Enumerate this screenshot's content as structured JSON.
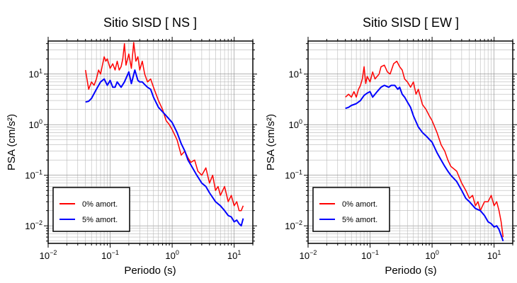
{
  "chart_data": [
    {
      "type": "line",
      "title": "Sitio SISD [ NS ]",
      "xlabel": "Periodo (s)",
      "ylabel": "PSA (cm/s²)",
      "xscale": "log",
      "yscale": "log",
      "xlim": [
        0.01,
        20
      ],
      "ylim": [
        0.0045,
        45
      ],
      "x_ticks": [
        {
          "base": "10",
          "exp": "−2"
        },
        {
          "base": "10",
          "exp": "−1"
        },
        {
          "base": "10",
          "exp": "0"
        },
        {
          "base": "10",
          "exp": "1"
        }
      ],
      "y_ticks": [
        {
          "base": "10",
          "exp": "−2"
        },
        {
          "base": "10",
          "exp": "−1"
        },
        {
          "base": "10",
          "exp": "0"
        },
        {
          "base": "10",
          "exp": "1"
        }
      ],
      "grid": true,
      "legend_position": "bottom-left",
      "series": [
        {
          "name": "0% amort.",
          "color": "#ff0000",
          "x": [
            0.04,
            0.045,
            0.05,
            0.055,
            0.06,
            0.065,
            0.07,
            0.075,
            0.08,
            0.085,
            0.09,
            0.1,
            0.11,
            0.12,
            0.13,
            0.14,
            0.15,
            0.16,
            0.17,
            0.18,
            0.2,
            0.22,
            0.24,
            0.26,
            0.28,
            0.3,
            0.33,
            0.36,
            0.4,
            0.45,
            0.5,
            0.55,
            0.6,
            0.7,
            0.8,
            0.9,
            1.0,
            1.2,
            1.4,
            1.6,
            1.8,
            2.0,
            2.3,
            2.6,
            3.0,
            3.5,
            4.0,
            4.5,
            5.0,
            5.5,
            6.0,
            7.0,
            8.0,
            9.0,
            10,
            11,
            12,
            13,
            14
          ],
          "values": [
            12,
            5,
            7,
            6,
            8,
            12,
            10,
            15,
            22,
            18,
            20,
            13,
            16,
            12,
            18,
            12,
            14,
            20,
            40,
            15,
            25,
            13,
            42,
            18,
            22,
            12,
            18,
            10,
            7,
            8,
            5.5,
            4,
            3,
            2,
            1.2,
            1,
            0.8,
            0.5,
            0.25,
            0.3,
            0.22,
            0.18,
            0.2,
            0.12,
            0.1,
            0.14,
            0.07,
            0.1,
            0.05,
            0.06,
            0.04,
            0.06,
            0.03,
            0.04,
            0.025,
            0.03,
            0.02,
            0.02,
            0.025
          ]
        },
        {
          "name": "5% amort.",
          "color": "#0000ff",
          "x": [
            0.04,
            0.045,
            0.05,
            0.06,
            0.07,
            0.08,
            0.09,
            0.1,
            0.11,
            0.12,
            0.13,
            0.15,
            0.17,
            0.2,
            0.22,
            0.25,
            0.28,
            0.3,
            0.33,
            0.36,
            0.4,
            0.45,
            0.5,
            0.6,
            0.7,
            0.8,
            1.0,
            1.2,
            1.4,
            1.6,
            1.8,
            2.0,
            2.5,
            3.0,
            3.5,
            4.0,
            5.0,
            6.0,
            7.0,
            8.0,
            9.0,
            10,
            11,
            12,
            13,
            14
          ],
          "values": [
            2.8,
            2.9,
            3.3,
            5,
            7,
            8,
            6,
            7.5,
            5.5,
            5.5,
            7,
            5.5,
            7,
            11,
            6.5,
            12,
            7.5,
            7,
            7,
            6.2,
            5.5,
            5,
            3.5,
            2.2,
            1.8,
            1.5,
            1.1,
            0.7,
            0.42,
            0.3,
            0.2,
            0.16,
            0.1,
            0.07,
            0.06,
            0.045,
            0.03,
            0.025,
            0.02,
            0.016,
            0.015,
            0.012,
            0.013,
            0.011,
            0.01,
            0.014
          ]
        }
      ]
    },
    {
      "type": "line",
      "title": "Sitio SISD [ EW ]",
      "xlabel": "Periodo (s)",
      "ylabel": "PSA (cm/s²)",
      "xscale": "log",
      "yscale": "log",
      "xlim": [
        0.01,
        20
      ],
      "ylim": [
        0.0045,
        45
      ],
      "x_ticks": [
        {
          "base": "10",
          "exp": "−2"
        },
        {
          "base": "10",
          "exp": "−1"
        },
        {
          "base": "10",
          "exp": "0"
        },
        {
          "base": "10",
          "exp": "1"
        }
      ],
      "y_ticks": [
        {
          "base": "10",
          "exp": "−2"
        },
        {
          "base": "10",
          "exp": "−1"
        },
        {
          "base": "10",
          "exp": "0"
        },
        {
          "base": "10",
          "exp": "1"
        }
      ],
      "grid": true,
      "legend_position": "bottom-left",
      "series": [
        {
          "name": "0% amort.",
          "color": "#ff0000",
          "x": [
            0.04,
            0.045,
            0.05,
            0.055,
            0.06,
            0.065,
            0.07,
            0.075,
            0.08,
            0.085,
            0.09,
            0.1,
            0.11,
            0.12,
            0.13,
            0.14,
            0.15,
            0.17,
            0.19,
            0.21,
            0.24,
            0.27,
            0.3,
            0.33,
            0.36,
            0.4,
            0.45,
            0.5,
            0.55,
            0.6,
            0.7,
            0.8,
            0.9,
            1.0,
            1.2,
            1.4,
            1.6,
            1.8,
            2.0,
            2.5,
            3.0,
            3.5,
            4.0,
            4.5,
            5.0,
            5.5,
            6.0,
            7.0,
            8.0,
            9.0,
            10,
            11,
            12,
            13,
            14
          ],
          "values": [
            3.5,
            4,
            3.5,
            4.5,
            3.5,
            5,
            6,
            8,
            14,
            6.5,
            9,
            7,
            11,
            8,
            9,
            10,
            14,
            15,
            11,
            10,
            16,
            18,
            14,
            12,
            8,
            7,
            5.5,
            7,
            4,
            5,
            2.5,
            2,
            1.5,
            1.2,
            0.7,
            0.4,
            0.3,
            0.2,
            0.15,
            0.12,
            0.07,
            0.05,
            0.035,
            0.04,
            0.025,
            0.03,
            0.02,
            0.03,
            0.03,
            0.04,
            0.025,
            0.03,
            0.02,
            0.012,
            0.006
          ]
        },
        {
          "name": "5% amort.",
          "color": "#0000ff",
          "x": [
            0.04,
            0.045,
            0.05,
            0.06,
            0.07,
            0.08,
            0.09,
            0.1,
            0.11,
            0.12,
            0.13,
            0.15,
            0.17,
            0.2,
            0.22,
            0.25,
            0.28,
            0.3,
            0.33,
            0.36,
            0.4,
            0.45,
            0.5,
            0.6,
            0.7,
            0.8,
            1.0,
            1.2,
            1.4,
            1.6,
            1.8,
            2.0,
            2.5,
            3.0,
            3.5,
            4.0,
            5.0,
            6.0,
            7.0,
            8.0,
            9.0,
            10,
            11,
            12,
            13,
            14
          ],
          "values": [
            2.1,
            2.2,
            2.4,
            2.6,
            3,
            3.8,
            4.2,
            4.5,
            3.5,
            4,
            4.5,
            5.5,
            6,
            5.5,
            6,
            6,
            5,
            5.5,
            4,
            3.5,
            2.8,
            2.2,
            1.5,
            0.9,
            0.7,
            0.6,
            0.45,
            0.28,
            0.2,
            0.15,
            0.12,
            0.1,
            0.075,
            0.05,
            0.035,
            0.03,
            0.022,
            0.02,
            0.016,
            0.012,
            0.011,
            0.0095,
            0.01,
            0.0085,
            0.0065,
            0.005
          ]
        }
      ]
    }
  ]
}
